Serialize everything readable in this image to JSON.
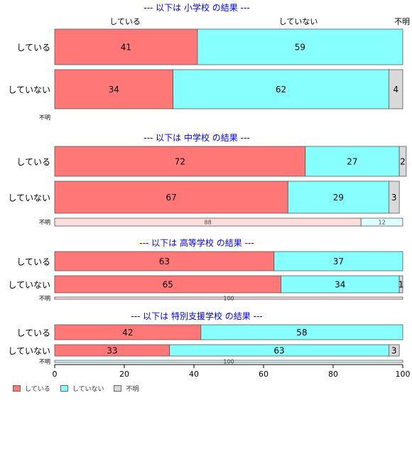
{
  "chart_data": {
    "type": "bar",
    "orientation": "horizontal",
    "stacked": true,
    "percent": true,
    "xlim": [
      0,
      100
    ],
    "xticks": [
      0,
      20,
      40,
      60,
      80,
      100
    ],
    "top_column_labels": [
      "している",
      "していない",
      "不明"
    ],
    "colors": {
      "している": "#ff7777",
      "していない": "#88ffff",
      "不明": "#d9d9d9"
    },
    "legend": {
      "position": "bottom-left",
      "entries": [
        "している",
        "していない",
        "不明"
      ]
    },
    "panels": [
      {
        "title": "--- 以下は 小学校 の結果 ---",
        "rows": [
          {
            "label": "している",
            "values": [
              41,
              59,
              0
            ]
          },
          {
            "label": "していない",
            "values": [
              34,
              62,
              4
            ]
          },
          {
            "label": "不明",
            "values": [
              0,
              0,
              0
            ],
            "pale": true
          }
        ]
      },
      {
        "title": "--- 以下は 中学校 の結果 ---",
        "rows": [
          {
            "label": "している",
            "values": [
              72,
              27,
              2
            ]
          },
          {
            "label": "していない",
            "values": [
              67,
              29,
              3
            ]
          },
          {
            "label": "不明",
            "values": [
              88,
              12,
              0
            ],
            "pale": true
          }
        ]
      },
      {
        "title": "--- 以下は 高等学校 の結果 ---",
        "rows": [
          {
            "label": "している",
            "values": [
              63,
              37,
              0
            ]
          },
          {
            "label": "していない",
            "values": [
              65,
              34,
              1
            ]
          },
          {
            "label": "不明",
            "values": [
              100,
              0,
              0
            ],
            "pale": true
          }
        ]
      },
      {
        "title": "--- 以下は 特別支援学校 の結果 ---",
        "rows": [
          {
            "label": "している",
            "values": [
              42,
              58,
              0
            ]
          },
          {
            "label": "していない",
            "values": [
              33,
              63,
              3
            ]
          },
          {
            "label": "不明",
            "values": [
              0,
              100,
              0
            ],
            "pale": true,
            "label_override": "100"
          }
        ]
      }
    ]
  }
}
